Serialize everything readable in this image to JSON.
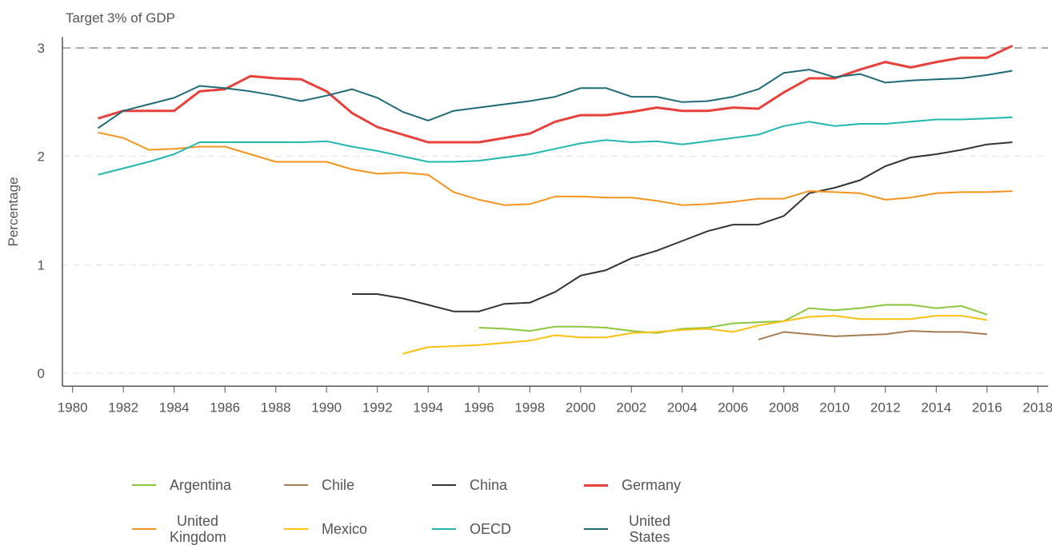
{
  "chart_data": {
    "type": "line",
    "annotation": "Target 3% of GDP",
    "target_line": 3,
    "ylabel": "Percentage",
    "x": [
      1981,
      1982,
      1983,
      1984,
      1985,
      1986,
      1987,
      1988,
      1989,
      1990,
      1991,
      1992,
      1993,
      1994,
      1995,
      1996,
      1997,
      1998,
      1999,
      2000,
      2001,
      2002,
      2003,
      2004,
      2005,
      2006,
      2007,
      2008,
      2009,
      2010,
      2011,
      2012,
      2013,
      2014,
      2015,
      2016,
      2017
    ],
    "xlim": [
      1979.6,
      2018.4
    ],
    "xticks": [
      1980,
      1982,
      1984,
      1986,
      1988,
      1990,
      1992,
      1994,
      1996,
      1998,
      2000,
      2002,
      2004,
      2006,
      2008,
      2010,
      2012,
      2014,
      2016,
      2018
    ],
    "ylim": [
      -0.12,
      3.1
    ],
    "yticks": [
      0,
      1,
      2,
      3
    ],
    "grid": true,
    "series": [
      {
        "name": "Argentina",
        "color": "#8dc63f",
        "values": [
          null,
          null,
          null,
          null,
          null,
          null,
          null,
          null,
          null,
          null,
          null,
          null,
          null,
          null,
          null,
          0.42,
          0.41,
          0.39,
          0.43,
          0.43,
          0.42,
          0.39,
          0.37,
          0.41,
          0.42,
          0.46,
          0.47,
          0.48,
          0.6,
          0.58,
          0.6,
          0.63,
          0.63,
          0.6,
          0.62,
          0.54,
          null
        ]
      },
      {
        "name": "Chile",
        "color": "#a67c52",
        "values": [
          null,
          null,
          null,
          null,
          null,
          null,
          null,
          null,
          null,
          null,
          null,
          null,
          null,
          null,
          null,
          null,
          null,
          null,
          null,
          null,
          null,
          null,
          null,
          null,
          null,
          null,
          0.31,
          0.38,
          0.36,
          0.34,
          0.35,
          0.36,
          0.39,
          0.38,
          0.38,
          0.36,
          null
        ]
      },
      {
        "name": "China",
        "color": "#333333",
        "values": [
          null,
          null,
          null,
          null,
          null,
          null,
          null,
          null,
          null,
          null,
          0.73,
          0.73,
          0.69,
          0.63,
          0.57,
          0.57,
          0.64,
          0.65,
          0.75,
          0.9,
          0.95,
          1.06,
          1.13,
          1.22,
          1.31,
          1.37,
          1.37,
          1.45,
          1.66,
          1.71,
          1.78,
          1.91,
          1.99,
          2.02,
          2.06,
          2.11,
          2.13
        ]
      },
      {
        "name": "Germany",
        "color": "#e8403a",
        "values": [
          2.35,
          2.42,
          2.42,
          2.42,
          2.6,
          2.62,
          2.74,
          2.72,
          2.71,
          2.6,
          2.4,
          2.27,
          2.2,
          2.13,
          2.13,
          2.13,
          2.17,
          2.21,
          2.32,
          2.38,
          2.38,
          2.41,
          2.45,
          2.42,
          2.42,
          2.45,
          2.44,
          2.59,
          2.72,
          2.72,
          2.8,
          2.87,
          2.82,
          2.87,
          2.91,
          2.91,
          3.02
        ]
      },
      {
        "name": "United Kingdom",
        "color": "#f7941d",
        "values": [
          2.22,
          2.17,
          2.06,
          2.07,
          2.09,
          2.09,
          2.02,
          1.95,
          1.95,
          1.95,
          1.88,
          1.84,
          1.85,
          1.83,
          1.67,
          1.6,
          1.55,
          1.56,
          1.63,
          1.63,
          1.62,
          1.62,
          1.59,
          1.55,
          1.56,
          1.58,
          1.61,
          1.61,
          1.68,
          1.67,
          1.66,
          1.6,
          1.62,
          1.66,
          1.67,
          1.67,
          1.68
        ]
      },
      {
        "name": "Mexico",
        "color": "#fdc010",
        "values": [
          null,
          null,
          null,
          null,
          null,
          null,
          null,
          null,
          null,
          null,
          null,
          null,
          0.18,
          0.24,
          0.25,
          0.26,
          0.28,
          0.3,
          0.35,
          0.33,
          0.33,
          0.37,
          0.38,
          0.4,
          0.41,
          0.38,
          0.44,
          0.48,
          0.52,
          0.53,
          0.5,
          0.5,
          0.5,
          0.53,
          0.53,
          0.49,
          null
        ]
      },
      {
        "name": "OECD",
        "color": "#22b8b0",
        "values": [
          1.83,
          1.89,
          1.95,
          2.02,
          2.13,
          2.13,
          2.13,
          2.13,
          2.13,
          2.14,
          2.09,
          2.05,
          2.0,
          1.95,
          1.95,
          1.96,
          1.99,
          2.02,
          2.07,
          2.12,
          2.15,
          2.13,
          2.14,
          2.11,
          2.14,
          2.17,
          2.2,
          2.28,
          2.32,
          2.28,
          2.3,
          2.3,
          2.32,
          2.34,
          2.34,
          2.35,
          2.36
        ]
      },
      {
        "name": "United States",
        "color": "#1f6b75",
        "values": [
          2.26,
          2.42,
          2.48,
          2.54,
          2.65,
          2.63,
          2.6,
          2.56,
          2.51,
          2.56,
          2.62,
          2.54,
          2.41,
          2.33,
          2.42,
          2.45,
          2.48,
          2.51,
          2.55,
          2.63,
          2.63,
          2.55,
          2.55,
          2.5,
          2.51,
          2.55,
          2.62,
          2.77,
          2.8,
          2.73,
          2.76,
          2.68,
          2.7,
          2.71,
          2.72,
          2.75,
          2.79
        ]
      }
    ]
  }
}
